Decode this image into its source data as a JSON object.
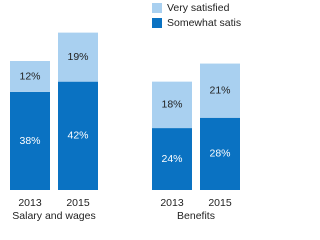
{
  "chart_data": {
    "type": "stacked-bar",
    "groups": [
      "Salary and wages",
      "Benefits"
    ],
    "categories": [
      "2013",
      "2015",
      "2013",
      "2015"
    ],
    "series": [
      {
        "name": "Somewhat satisfied",
        "color": "#0a72c2",
        "values": [
          38,
          42,
          24,
          28
        ],
        "value_labels": [
          "38%",
          "42%",
          "24%",
          "28%"
        ]
      },
      {
        "name": "Very satisfied",
        "color": "#a9d0f0",
        "values": [
          12,
          19,
          18,
          21
        ],
        "value_labels": [
          "12%",
          "19%",
          "18%",
          "21%"
        ]
      }
    ],
    "legend": "top-right"
  }
}
